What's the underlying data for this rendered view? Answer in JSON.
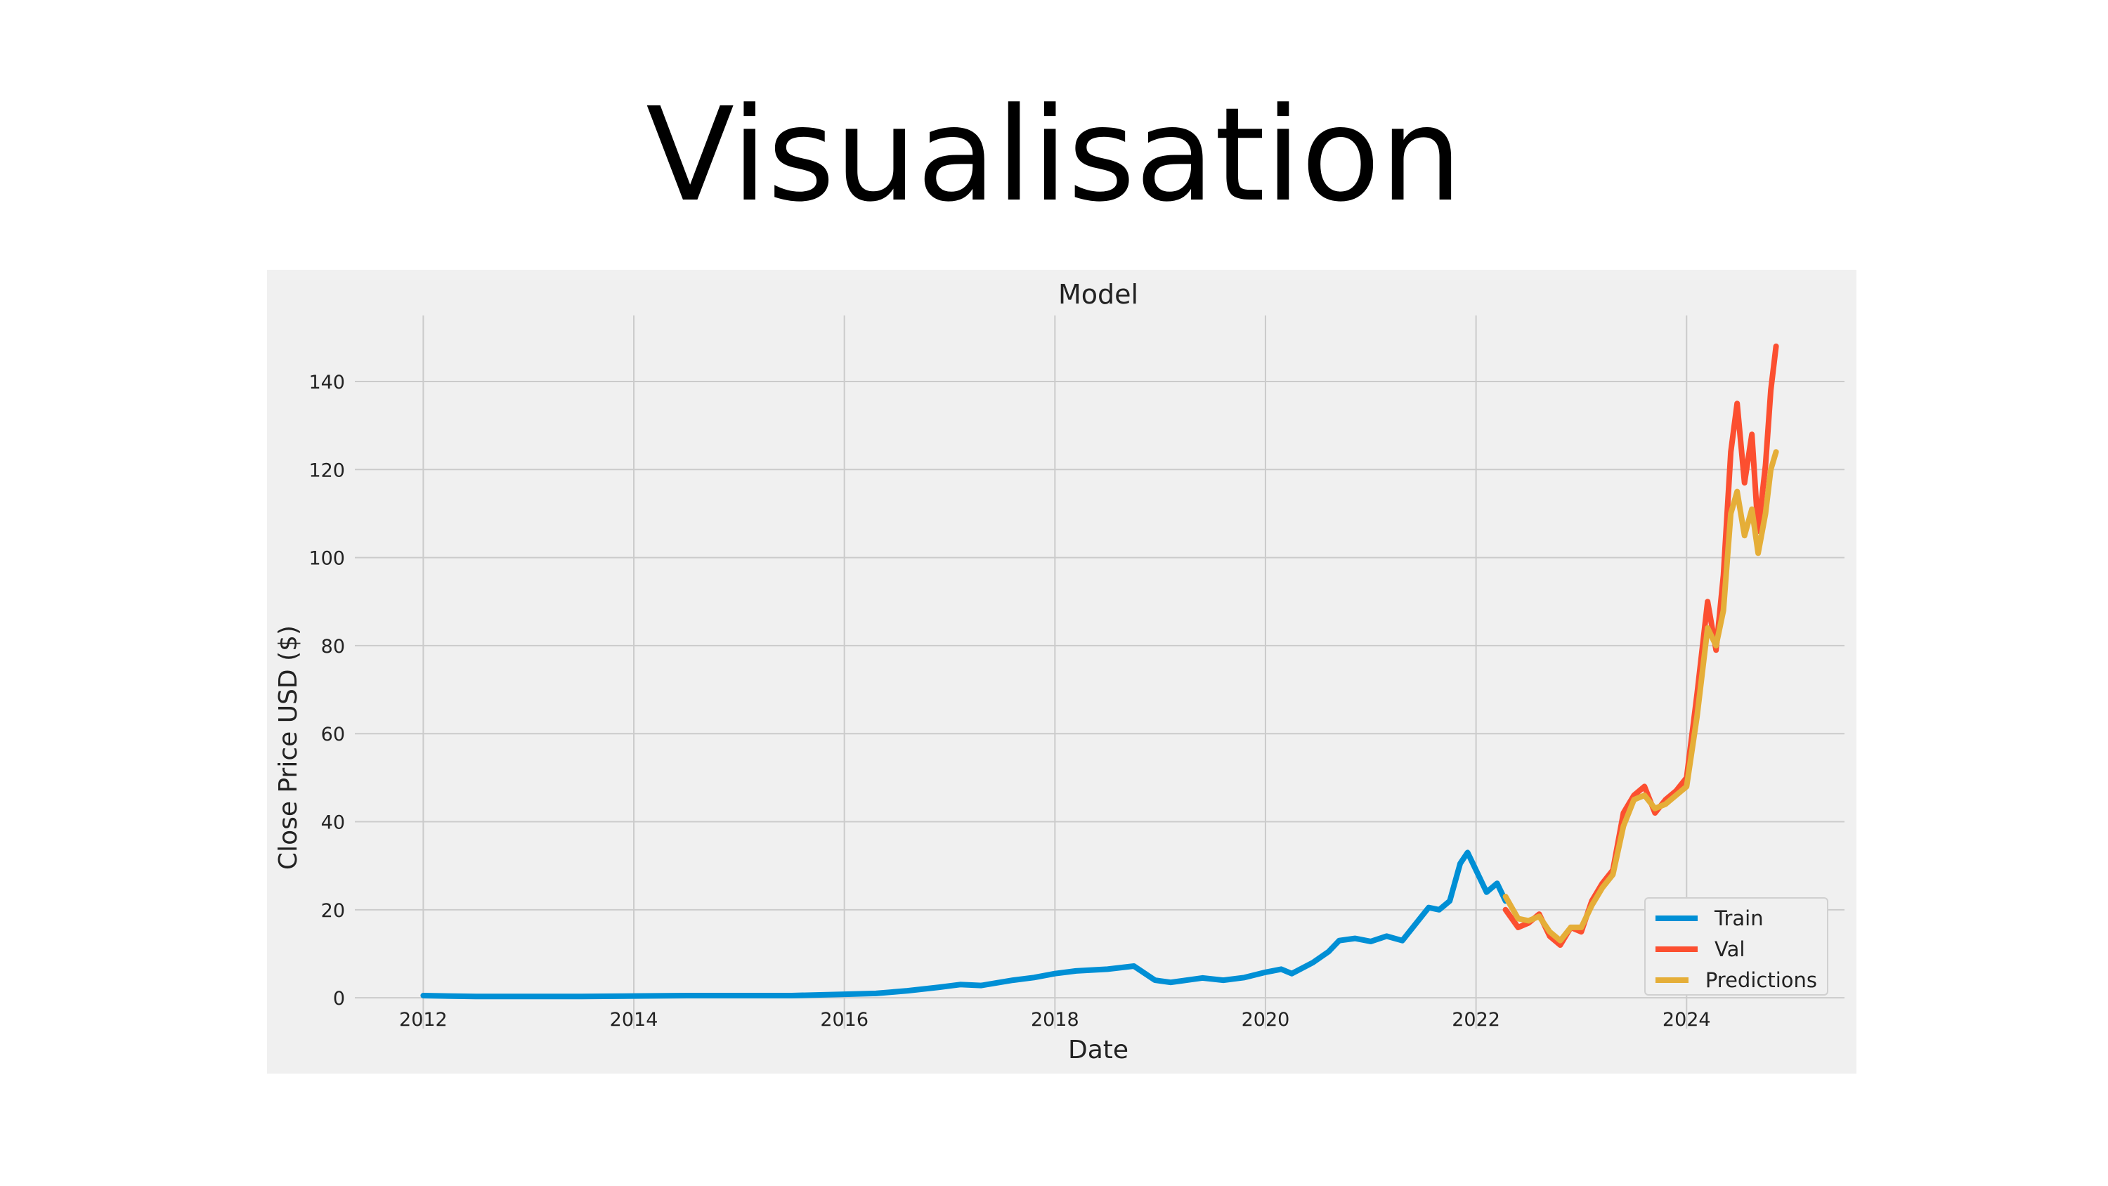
{
  "slide": {
    "title": "Visualisation"
  },
  "colors": {
    "train": "#008fd5",
    "val": "#fc4f30",
    "predictions": "#e5ae38",
    "grid": "#cbcbcb",
    "background": "#f0f0f0"
  },
  "chart_data": {
    "type": "line",
    "title": "Model",
    "xlabel": "Date",
    "ylabel": "Close Price USD ($)",
    "xlim": [
      2011.35,
      2025.5
    ],
    "ylim": [
      -7,
      155
    ],
    "x_ticks": [
      "2012",
      "2014",
      "2016",
      "2018",
      "2020",
      "2022",
      "2024"
    ],
    "y_ticks": [
      "0",
      "20",
      "40",
      "60",
      "80",
      "100",
      "120",
      "140"
    ],
    "grid": true,
    "legend_position": "bottom-right",
    "series": [
      {
        "name": "Train",
        "color": "#008fd5",
        "x": [
          2012.0,
          2012.5,
          2013.0,
          2013.5,
          2014.0,
          2014.5,
          2015.0,
          2015.5,
          2016.0,
          2016.3,
          2016.6,
          2016.9,
          2017.1,
          2017.3,
          2017.6,
          2017.8,
          2018.0,
          2018.2,
          2018.5,
          2018.75,
          2018.95,
          2019.1,
          2019.4,
          2019.6,
          2019.8,
          2020.0,
          2020.15,
          2020.25,
          2020.45,
          2020.6,
          2020.7,
          2020.85,
          2021.0,
          2021.15,
          2021.3,
          2021.45,
          2021.55,
          2021.65,
          2021.75,
          2021.85,
          2021.92,
          2022.0,
          2022.1,
          2022.2,
          2022.28
        ],
        "values": [
          0.5,
          0.3,
          0.3,
          0.3,
          0.4,
          0.5,
          0.5,
          0.5,
          0.8,
          1.0,
          1.6,
          2.4,
          3.0,
          2.8,
          4.0,
          4.6,
          5.5,
          6.1,
          6.5,
          7.2,
          4.0,
          3.5,
          4.5,
          4.0,
          4.6,
          5.8,
          6.5,
          5.5,
          8.0,
          10.5,
          13.0,
          13.5,
          12.8,
          14.0,
          13.0,
          17.5,
          20.5,
          20.0,
          22.0,
          30.5,
          33.0,
          29.0,
          24.0,
          26.0,
          22.0
        ]
      },
      {
        "name": "Val",
        "color": "#fc4f30",
        "x": [
          2022.28,
          2022.4,
          2022.5,
          2022.6,
          2022.7,
          2022.8,
          2022.9,
          2023.0,
          2023.1,
          2023.2,
          2023.3,
          2023.4,
          2023.5,
          2023.6,
          2023.7,
          2023.8,
          2023.9,
          2024.0,
          2024.1,
          2024.2,
          2024.28,
          2024.35,
          2024.42,
          2024.48,
          2024.55,
          2024.62,
          2024.68,
          2024.75,
          2024.8,
          2024.85
        ],
        "values": [
          20.0,
          16.0,
          17.0,
          19.0,
          14.0,
          12.0,
          16.0,
          15.0,
          22.0,
          26.0,
          29.0,
          42.0,
          46.0,
          48.0,
          42.0,
          45.0,
          47.0,
          50.0,
          69.0,
          90.0,
          79.0,
          96.0,
          124.0,
          135.0,
          117.0,
          128.0,
          106.0,
          121.0,
          138.0,
          148.0
        ]
      },
      {
        "name": "Predictions",
        "color": "#e5ae38",
        "x": [
          2022.28,
          2022.4,
          2022.5,
          2022.6,
          2022.7,
          2022.8,
          2022.9,
          2023.0,
          2023.1,
          2023.2,
          2023.3,
          2023.4,
          2023.5,
          2023.6,
          2023.7,
          2023.8,
          2023.9,
          2024.0,
          2024.1,
          2024.2,
          2024.28,
          2024.35,
          2024.42,
          2024.48,
          2024.55,
          2024.62,
          2024.68,
          2024.75,
          2024.8,
          2024.85
        ],
        "values": [
          23.0,
          18.0,
          17.5,
          18.5,
          15.0,
          13.0,
          16.0,
          16.0,
          21.0,
          25.0,
          28.0,
          39.0,
          45.0,
          46.0,
          43.0,
          44.0,
          46.0,
          48.0,
          64.0,
          84.0,
          80.0,
          88.0,
          110.0,
          115.0,
          105.0,
          111.0,
          101.0,
          110.0,
          120.0,
          124.0
        ]
      }
    ]
  }
}
